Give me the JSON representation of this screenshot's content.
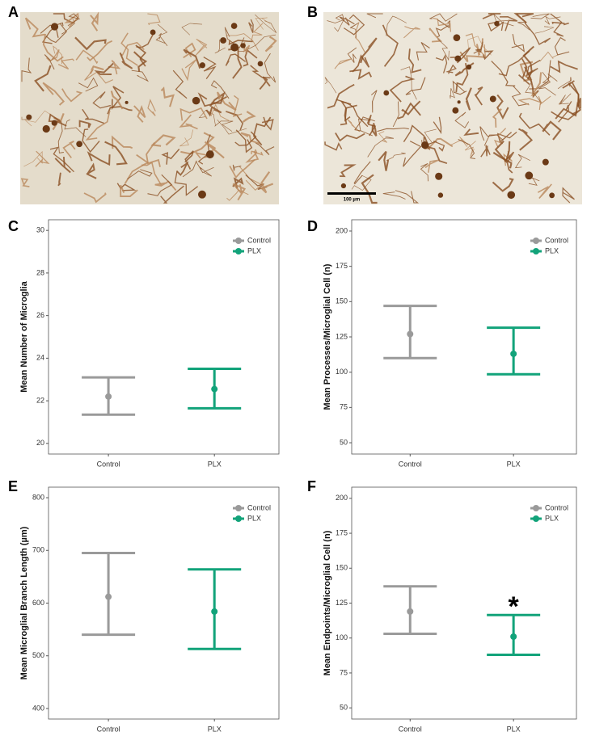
{
  "panel_labels": [
    "A",
    "B",
    "C",
    "D",
    "E",
    "F"
  ],
  "scale_bar": "100 µm",
  "chart_data": [
    {
      "type": "errorbar",
      "ylabel": "Mean Number of Microglia",
      "categories": [
        "Control",
        "PLX"
      ],
      "series": [
        {
          "name": "Control",
          "color": "#9a9a9a",
          "values": [
            22.2,
            null
          ],
          "lower": [
            21.35,
            null
          ],
          "upper": [
            23.1,
            null
          ]
        },
        {
          "name": "PLX",
          "color": "#12a37a",
          "values": [
            null,
            22.55
          ],
          "lower": [
            null,
            21.65
          ],
          "upper": [
            null,
            23.5
          ]
        }
      ],
      "ylim": [
        19.5,
        30.5
      ],
      "yticks": [
        20,
        22,
        24,
        26,
        28,
        30
      ],
      "legend": "top-right"
    },
    {
      "type": "errorbar",
      "ylabel": "Mean Processes/Microglial Cell (n)",
      "categories": [
        "Control",
        "PLX"
      ],
      "series": [
        {
          "name": "Control",
          "color": "#9a9a9a",
          "values": [
            127,
            null
          ],
          "lower": [
            110,
            null
          ],
          "upper": [
            147,
            null
          ]
        },
        {
          "name": "PLX",
          "color": "#12a37a",
          "values": [
            null,
            113
          ],
          "lower": [
            null,
            98.5
          ],
          "upper": [
            null,
            131.5
          ]
        }
      ],
      "ylim": [
        42,
        208
      ],
      "yticks": [
        50,
        75,
        100,
        125,
        150,
        175,
        200
      ],
      "legend": "top-right"
    },
    {
      "type": "errorbar",
      "ylabel": "Mean Microglial Branch Length (µm)",
      "categories": [
        "Control",
        "PLX"
      ],
      "series": [
        {
          "name": "Control",
          "color": "#9a9a9a",
          "values": [
            612,
            null
          ],
          "lower": [
            540,
            null
          ],
          "upper": [
            695,
            null
          ]
        },
        {
          "name": "PLX",
          "color": "#12a37a",
          "values": [
            null,
            584
          ],
          "lower": [
            null,
            513
          ],
          "upper": [
            null,
            664
          ]
        }
      ],
      "ylim": [
        380,
        820
      ],
      "yticks": [
        400,
        500,
        600,
        700,
        800
      ],
      "legend": "top-right"
    },
    {
      "type": "errorbar",
      "ylabel": "Mean Endpoints/Microglial Cell (n)",
      "categories": [
        "Control",
        "PLX"
      ],
      "series": [
        {
          "name": "Control",
          "color": "#9a9a9a",
          "values": [
            119,
            null
          ],
          "lower": [
            103,
            null
          ],
          "upper": [
            137,
            null
          ]
        },
        {
          "name": "PLX",
          "color": "#12a37a",
          "values": [
            null,
            101
          ],
          "lower": [
            null,
            88
          ],
          "upper": [
            null,
            116.5
          ]
        }
      ],
      "ylim": [
        42,
        208
      ],
      "yticks": [
        50,
        75,
        100,
        125,
        150,
        175,
        200
      ],
      "legend": "top-right",
      "annotation": "*"
    }
  ]
}
